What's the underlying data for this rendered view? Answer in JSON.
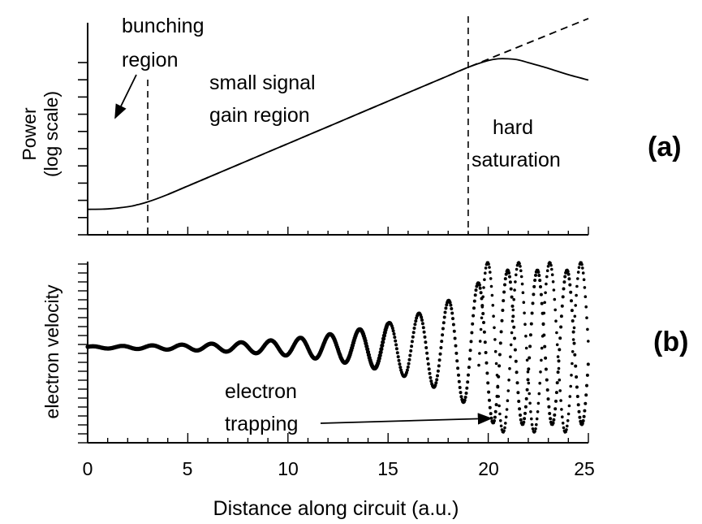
{
  "chart_data": [
    {
      "panel_label": "(a)",
      "type": "line",
      "ylabel_line1": "Power",
      "ylabel_line2": "(log scale)",
      "y_scale": "log (no tick labels)",
      "xlim": [
        0,
        25
      ],
      "ylim": [
        0,
        10
      ],
      "series": [
        {
          "style": "solid",
          "x": [
            0,
            1,
            2,
            2.5,
            3,
            4,
            5,
            6,
            7,
            8,
            10,
            12,
            14,
            16,
            18,
            19,
            20,
            20.5,
            21,
            21.5,
            22,
            23,
            24,
            25
          ],
          "y": [
            1.2,
            1.22,
            1.32,
            1.42,
            1.55,
            1.9,
            2.3,
            2.7,
            3.1,
            3.5,
            4.3,
            5.1,
            5.9,
            6.7,
            7.5,
            7.9,
            8.22,
            8.3,
            8.3,
            8.25,
            8.12,
            7.85,
            7.55,
            7.3
          ]
        },
        {
          "style": "dashed",
          "x": [
            4,
            10,
            15,
            19,
            25
          ],
          "y": [
            1.9,
            4.3,
            6.3,
            7.9,
            10.2
          ]
        }
      ],
      "vlines": [
        3,
        19
      ],
      "annotations": {
        "bunching_line1": "bunching",
        "bunching_line2": "region",
        "gain_line1": "small signal",
        "gain_line2": "gain region",
        "sat_line1": "hard",
        "sat_line2": "saturation"
      }
    },
    {
      "panel_label": "(b)",
      "type": "scatter",
      "ylabel": "electron velocity",
      "xlim": [
        0,
        25
      ],
      "ylim": [
        -1,
        1
      ],
      "xlabel": "Distance along circuit (a.u.)",
      "xticks": [
        "0",
        "5",
        "10",
        "15",
        "20",
        "25"
      ],
      "annotations": {
        "trap_line1": "electron",
        "trap_line2": "trapping"
      }
    }
  ]
}
